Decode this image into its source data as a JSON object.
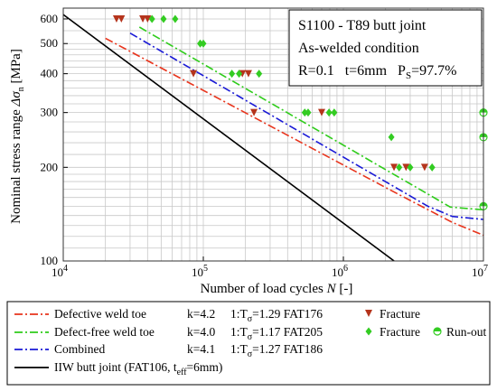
{
  "chart_data": {
    "type": "scatter",
    "xscale": "log",
    "yscale": "log",
    "xlim": [
      10000,
      10000000
    ],
    "ylim": [
      100,
      650
    ],
    "grid": true,
    "xlabel": "Number of load cycles N [-]",
    "ylabel": "Nominal stress range Δσ_n [MPa]",
    "x_ticks": [
      {
        "value": 10000,
        "base": "10",
        "exp": "4"
      },
      {
        "value": 100000,
        "base": "10",
        "exp": "5"
      },
      {
        "value": 1000000,
        "base": "10",
        "exp": "6"
      },
      {
        "value": 10000000,
        "base": "10",
        "exp": "7"
      }
    ],
    "y_ticks": [
      {
        "value": 100,
        "label": "100"
      },
      {
        "value": 200,
        "label": "200"
      },
      {
        "value": 300,
        "label": "300"
      },
      {
        "value": 400,
        "label": "400"
      },
      {
        "value": 500,
        "label": "500"
      },
      {
        "value": 600,
        "label": "600"
      }
    ],
    "info_box": {
      "line1": "S1100 - T89 butt joint",
      "line2": "As-welded condition",
      "line3": "R=0.1   t=6mm   P",
      "line3_sub": "S",
      "line3_end": "=97.7%"
    },
    "lines": [
      {
        "name": "Defective weld toe",
        "color": "#e8341c",
        "dash": "dashdot",
        "points": [
          [
            20000,
            520
          ],
          [
            2400000,
            165
          ],
          [
            6000000,
            133
          ],
          [
            10000000,
            121
          ]
        ],
        "k": "k=4.2",
        "fat": "1:T",
        "fat_sub": "σ",
        "fat_end": "=1.29  FAT176"
      },
      {
        "name": "Defect-free weld toe",
        "color": "#2ecc1a",
        "dash": "dashdot",
        "points": [
          [
            35000,
            565
          ],
          [
            5800000,
            149
          ],
          [
            10000000,
            146
          ]
        ],
        "k": "k=4.0",
        "fat": "1:T",
        "fat_sub": "σ",
        "fat_end": "=1.17  FAT205"
      },
      {
        "name": "Combined",
        "color": "#1a1ad6",
        "dash": "dashdot",
        "points": [
          [
            30000,
            540
          ],
          [
            4000000,
            150
          ],
          [
            6000000,
            139
          ],
          [
            10000000,
            136
          ]
        ],
        "k": "k=4.1",
        "fat": "1:T",
        "fat_sub": "σ",
        "fat_end": "=1.27  FAT186"
      },
      {
        "name": "IIW butt joint (FAT106, t",
        "name_sub": "eff",
        "name_end": "=6mm)",
        "color": "#000000",
        "dash": "solid",
        "points": [
          [
            10000,
            620
          ],
          [
            2300000,
            100
          ]
        ]
      }
    ],
    "series": [
      {
        "name": "Fracture",
        "marker": "triangle-down",
        "color": "#b5341c",
        "legend_group": "Defective weld toe",
        "points": [
          [
            24000,
            600
          ],
          [
            26000,
            600
          ],
          [
            37000,
            600
          ],
          [
            40000,
            600
          ],
          [
            85000,
            400
          ],
          [
            190000,
            400
          ],
          [
            210000,
            400
          ],
          [
            230000,
            300
          ],
          [
            700000,
            300
          ],
          [
            2300000,
            200
          ],
          [
            2800000,
            200
          ],
          [
            3800000,
            200
          ]
        ]
      },
      {
        "name": "Fracture",
        "marker": "diamond",
        "color": "#33cc22",
        "legend_group": "Defect-free weld toe",
        "points": [
          [
            43000,
            600
          ],
          [
            52000,
            600
          ],
          [
            63000,
            600
          ],
          [
            95000,
            500
          ],
          [
            100000,
            500
          ],
          [
            160000,
            400
          ],
          [
            180000,
            400
          ],
          [
            250000,
            400
          ],
          [
            530000,
            300
          ],
          [
            560000,
            300
          ],
          [
            790000,
            300
          ],
          [
            860000,
            300
          ],
          [
            2200000,
            250
          ],
          [
            2500000,
            200
          ],
          [
            3000000,
            200
          ],
          [
            4300000,
            200
          ]
        ]
      },
      {
        "name": "Run-out",
        "marker": "half-circle",
        "color": "#33cc22",
        "legend_group": "Defect-free weld toe",
        "points": [
          [
            10000000,
            300
          ],
          [
            10000000,
            250
          ],
          [
            10000000,
            150
          ]
        ]
      }
    ]
  }
}
